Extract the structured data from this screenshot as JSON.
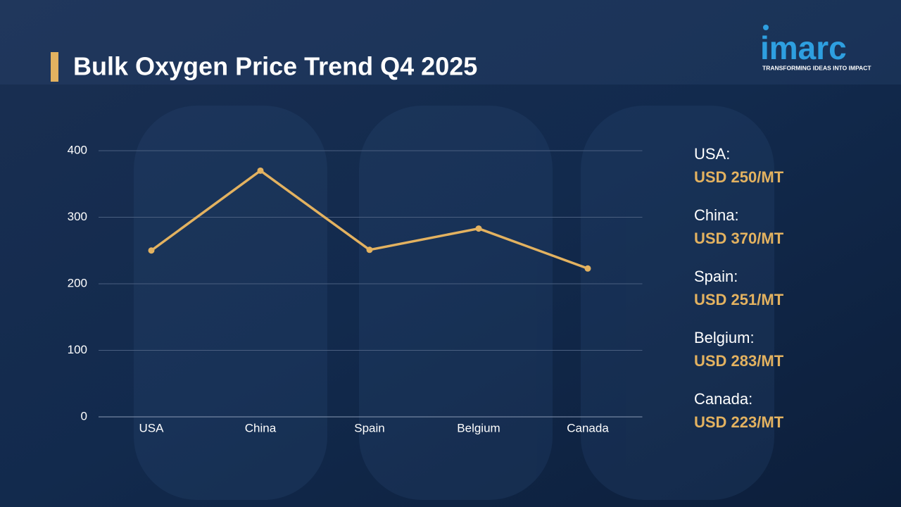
{
  "logo": {
    "name": "imarc",
    "tagline": "TRANSFORMING IDEAS INTO IMPACT"
  },
  "chart_data": {
    "type": "line",
    "title": "Bulk Oxygen Price Trend Q4 2025",
    "categories": [
      "USA",
      "China",
      "Spain",
      "Belgium",
      "Canada"
    ],
    "values": [
      250,
      370,
      251,
      283,
      223
    ],
    "value_labels": [
      "USD 250/MT",
      "USD 370/MT",
      "USD 251/MT",
      "USD 283/MT",
      "USD 223/MT"
    ],
    "side_labels": [
      "USA:",
      "China:",
      "Spain:",
      "Belgium:",
      "Canada:"
    ],
    "color": "#e3b260",
    "ylim": [
      0,
      400
    ],
    "yticks": [
      0,
      100,
      200,
      300,
      400
    ],
    "grid": true
  }
}
